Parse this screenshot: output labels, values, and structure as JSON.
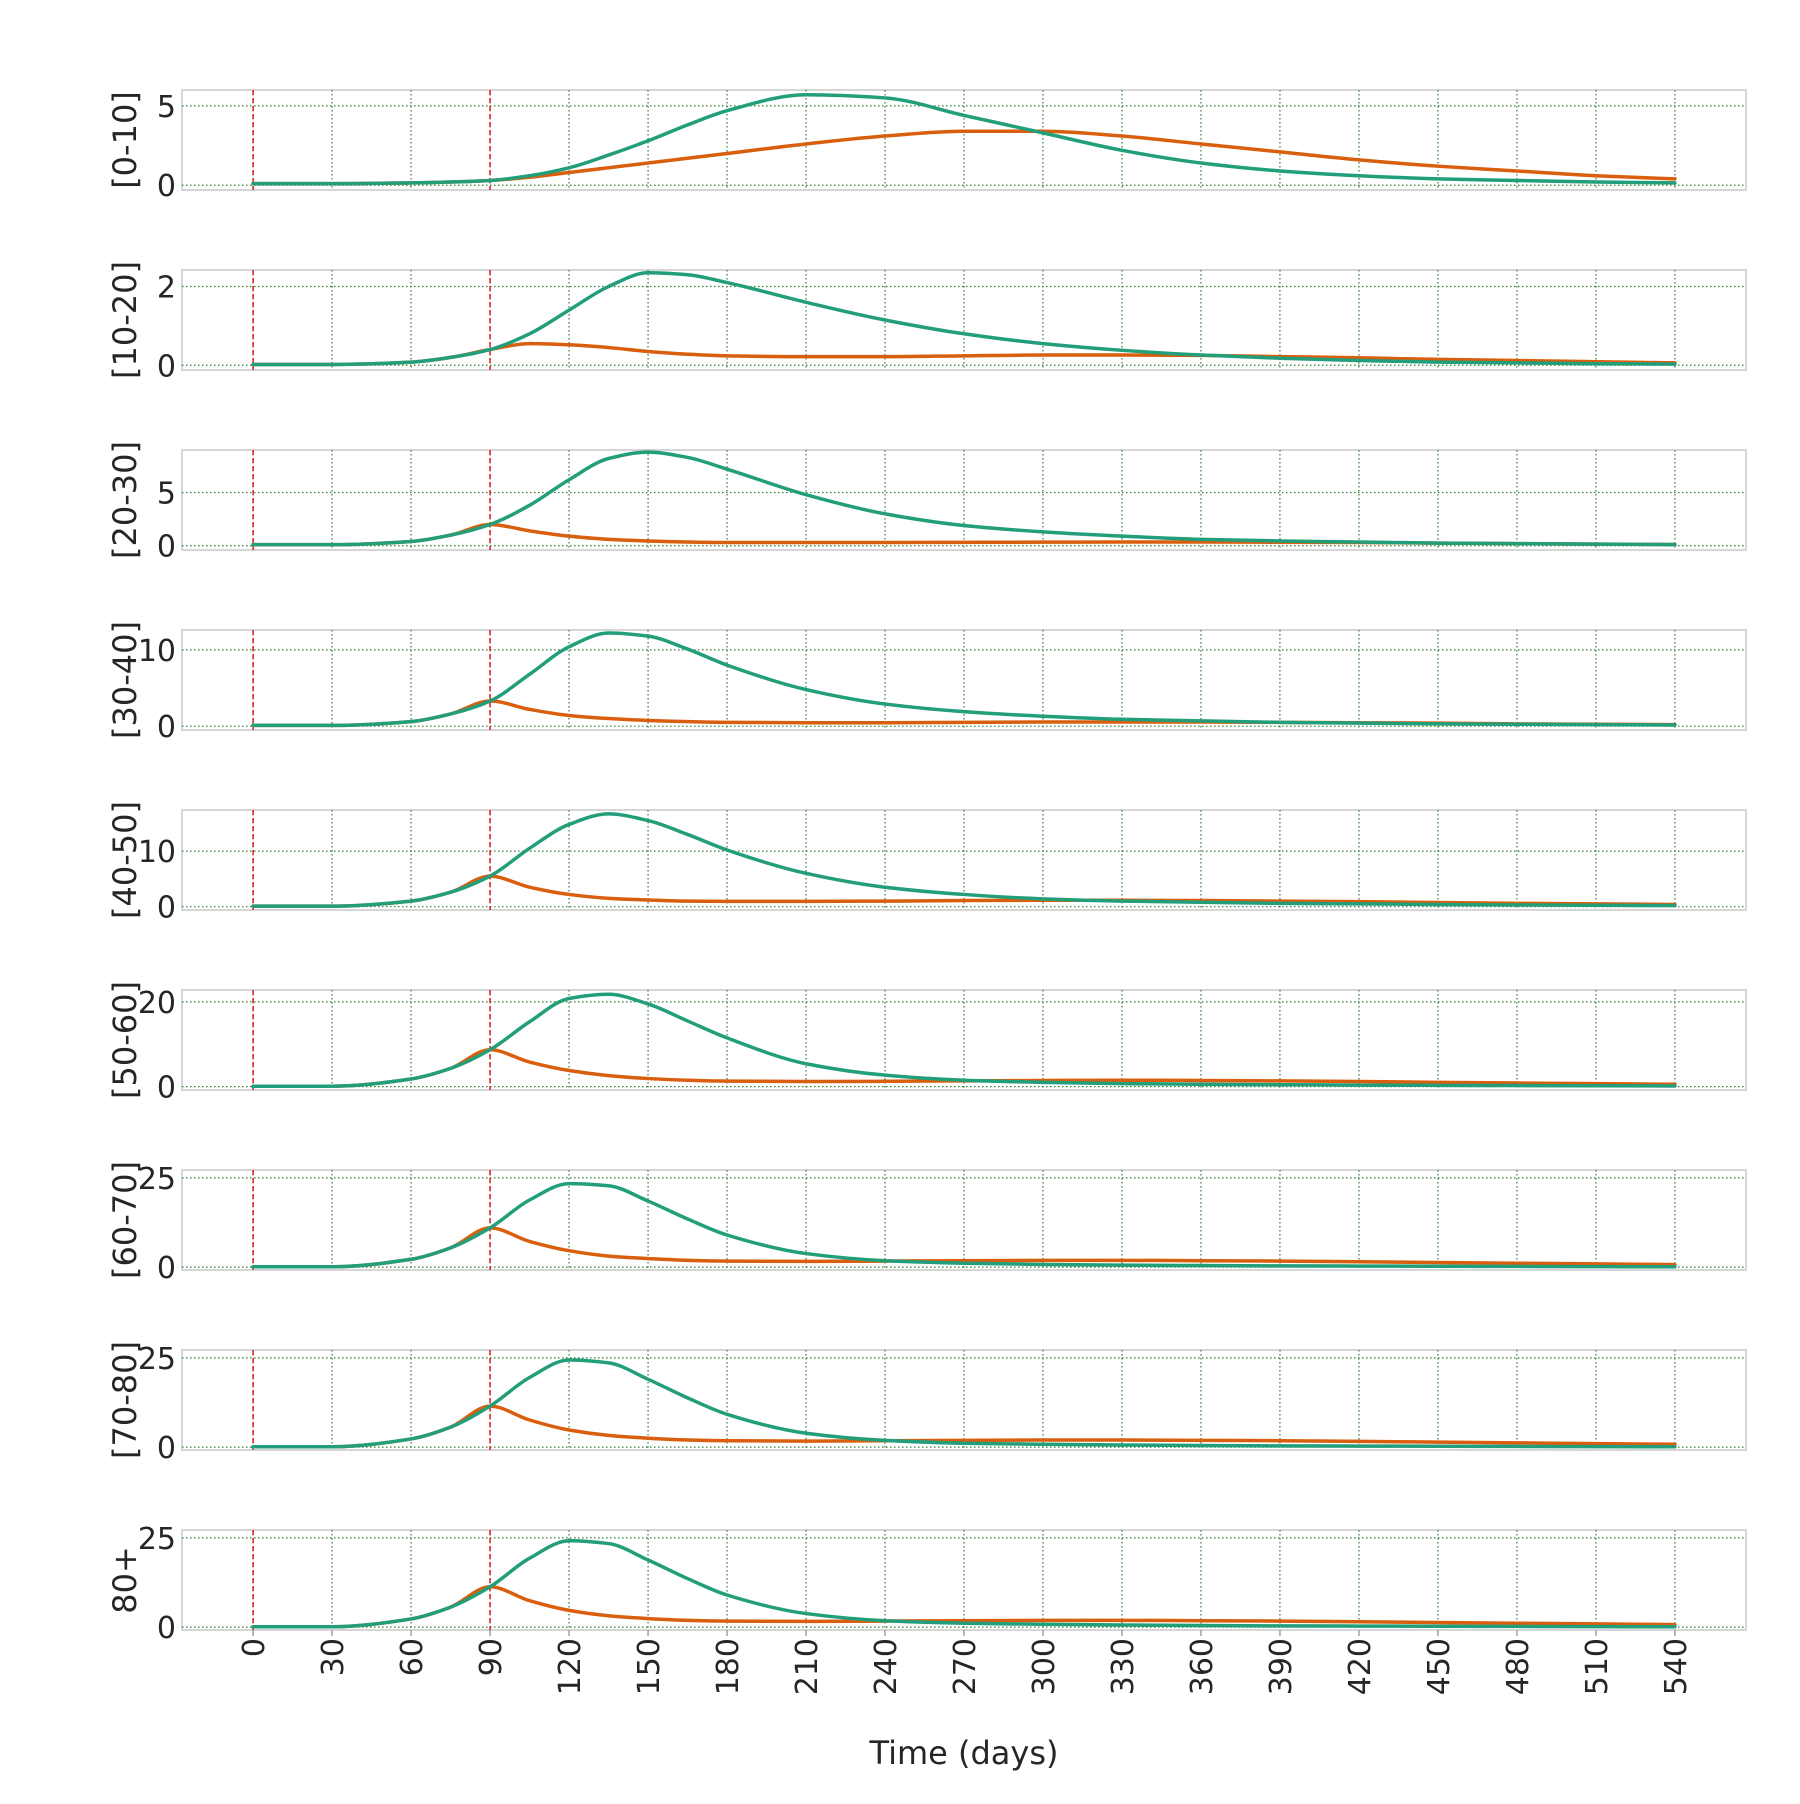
{
  "chart_data": {
    "type": "line",
    "layout": "small-multiples",
    "xlabel": "Time (days)",
    "x_ticks": [
      0,
      30,
      60,
      90,
      120,
      150,
      180,
      210,
      240,
      270,
      300,
      330,
      360,
      390,
      420,
      450,
      480,
      510,
      540
    ],
    "xlim": [
      -27,
      567
    ],
    "x_tick_label_rotation": 90,
    "vlines": [
      0,
      90
    ],
    "vline_color": "#e41a1c",
    "grid": true,
    "grid_color": "#2e7d32",
    "legend": "none",
    "series_colors": {
      "green": "#229e7a",
      "orange": "#d95f0e"
    },
    "x": [
      0,
      30,
      60,
      75,
      90,
      105,
      120,
      135,
      150,
      165,
      180,
      210,
      240,
      270,
      300,
      330,
      360,
      390,
      420,
      450,
      480,
      510,
      540
    ],
    "panels": [
      {
        "ylabel": "[0-10]",
        "ylim": [
          -0.3,
          6.0
        ],
        "yticks": [
          0,
          5
        ],
        "green": [
          0.1,
          0.1,
          0.15,
          0.2,
          0.3,
          0.6,
          1.1,
          1.9,
          2.8,
          3.8,
          4.7,
          5.7,
          5.5,
          4.4,
          3.3,
          2.2,
          1.4,
          0.9,
          0.6,
          0.4,
          0.3,
          0.2,
          0.15
        ],
        "orange": [
          0.1,
          0.1,
          0.15,
          0.2,
          0.3,
          0.5,
          0.8,
          1.1,
          1.4,
          1.7,
          2.0,
          2.6,
          3.1,
          3.4,
          3.4,
          3.1,
          2.6,
          2.1,
          1.6,
          1.2,
          0.9,
          0.6,
          0.4
        ]
      },
      {
        "ylabel": "[10-20]",
        "ylim": [
          -0.12,
          2.42
        ],
        "yticks": [
          0,
          2
        ],
        "green": [
          0.02,
          0.02,
          0.08,
          0.2,
          0.4,
          0.8,
          1.4,
          2.0,
          2.35,
          2.3,
          2.1,
          1.6,
          1.15,
          0.8,
          0.55,
          0.38,
          0.26,
          0.18,
          0.12,
          0.08,
          0.06,
          0.04,
          0.03
        ],
        "orange": [
          0.02,
          0.02,
          0.08,
          0.2,
          0.4,
          0.55,
          0.52,
          0.45,
          0.35,
          0.28,
          0.24,
          0.22,
          0.22,
          0.24,
          0.26,
          0.26,
          0.25,
          0.22,
          0.19,
          0.15,
          0.12,
          0.09,
          0.06
        ]
      },
      {
        "ylabel": "[20-30]",
        "ylim": [
          -0.4,
          9.0
        ],
        "yticks": [
          0,
          5
        ],
        "green": [
          0.1,
          0.1,
          0.4,
          1.0,
          2.0,
          3.8,
          6.2,
          8.2,
          8.8,
          8.3,
          7.2,
          4.8,
          3.0,
          1.9,
          1.3,
          0.9,
          0.6,
          0.45,
          0.35,
          0.25,
          0.2,
          0.15,
          0.1
        ],
        "orange": [
          0.1,
          0.1,
          0.4,
          1.0,
          2.0,
          1.4,
          0.9,
          0.6,
          0.45,
          0.35,
          0.3,
          0.3,
          0.3,
          0.32,
          0.34,
          0.35,
          0.35,
          0.33,
          0.3,
          0.25,
          0.2,
          0.15,
          0.12
        ]
      },
      {
        "ylabel": "[30-40]",
        "ylim": [
          -0.5,
          12.6
        ],
        "yticks": [
          0,
          10
        ],
        "green": [
          0.1,
          0.1,
          0.6,
          1.6,
          3.3,
          6.8,
          10.4,
          12.2,
          11.8,
          10.1,
          8.0,
          4.8,
          2.9,
          1.9,
          1.3,
          0.9,
          0.7,
          0.5,
          0.4,
          0.3,
          0.25,
          0.2,
          0.15
        ],
        "orange": [
          0.1,
          0.1,
          0.6,
          1.6,
          3.3,
          2.2,
          1.4,
          1.0,
          0.75,
          0.6,
          0.5,
          0.45,
          0.45,
          0.5,
          0.55,
          0.55,
          0.55,
          0.5,
          0.45,
          0.4,
          0.3,
          0.25,
          0.2
        ]
      },
      {
        "ylabel": "[40-50]",
        "ylim": [
          -0.6,
          17.4
        ],
        "yticks": [
          0,
          10
        ],
        "green": [
          0.1,
          0.1,
          1.0,
          2.6,
          5.5,
          10.5,
          14.8,
          16.7,
          15.5,
          13.0,
          10.2,
          6.0,
          3.5,
          2.2,
          1.4,
          1.0,
          0.8,
          0.6,
          0.5,
          0.4,
          0.3,
          0.25,
          0.2
        ],
        "orange": [
          0.1,
          0.1,
          1.0,
          2.6,
          5.5,
          3.5,
          2.2,
          1.5,
          1.2,
          1.0,
          0.95,
          0.95,
          1.0,
          1.1,
          1.15,
          1.15,
          1.1,
          1.0,
          0.9,
          0.75,
          0.6,
          0.5,
          0.4
        ]
      },
      {
        "ylabel": "[50-60]",
        "ylim": [
          -0.8,
          22.8
        ],
        "yticks": [
          0,
          20
        ],
        "green": [
          0.1,
          0.1,
          1.8,
          4.3,
          8.7,
          15.3,
          20.8,
          21.8,
          19.5,
          15.5,
          11.5,
          5.4,
          2.7,
          1.5,
          1.0,
          0.7,
          0.55,
          0.45,
          0.35,
          0.3,
          0.25,
          0.2,
          0.15
        ],
        "orange": [
          0.1,
          0.1,
          1.8,
          4.3,
          8.7,
          5.8,
          3.8,
          2.6,
          1.9,
          1.5,
          1.3,
          1.2,
          1.25,
          1.35,
          1.45,
          1.5,
          1.45,
          1.35,
          1.2,
          1.0,
          0.85,
          0.7,
          0.55
        ]
      },
      {
        "ylabel": "[60-70]",
        "ylim": [
          -0.8,
          27.2
        ],
        "yticks": [
          0,
          25
        ],
        "green": [
          0.1,
          0.1,
          2.2,
          5.4,
          11.0,
          18.8,
          23.4,
          22.8,
          18.5,
          13.5,
          9.0,
          3.8,
          1.8,
          1.1,
          0.75,
          0.55,
          0.45,
          0.35,
          0.3,
          0.25,
          0.2,
          0.15,
          0.1
        ],
        "orange": [
          0.1,
          0.1,
          2.2,
          5.4,
          11.0,
          7.2,
          4.6,
          3.1,
          2.4,
          1.9,
          1.7,
          1.6,
          1.7,
          1.8,
          1.9,
          1.9,
          1.8,
          1.7,
          1.5,
          1.3,
          1.1,
          0.9,
          0.7
        ]
      },
      {
        "ylabel": "[70-80]",
        "ylim": [
          -0.8,
          27.2
        ],
        "yticks": [
          0,
          25
        ],
        "green": [
          0.1,
          0.1,
          2.3,
          5.6,
          11.5,
          19.5,
          24.4,
          23.6,
          19.0,
          13.8,
          9.2,
          3.9,
          1.9,
          1.1,
          0.8,
          0.6,
          0.45,
          0.35,
          0.3,
          0.25,
          0.2,
          0.15,
          0.1
        ],
        "orange": [
          0.1,
          0.1,
          2.3,
          5.6,
          11.5,
          7.6,
          4.8,
          3.3,
          2.5,
          2.0,
          1.8,
          1.7,
          1.8,
          1.9,
          2.0,
          2.0,
          1.9,
          1.8,
          1.6,
          1.4,
          1.2,
          1.0,
          0.8
        ]
      },
      {
        "ylabel": "80+",
        "ylim": [
          -0.8,
          27.2
        ],
        "yticks": [
          0,
          25
        ],
        "green": [
          0.1,
          0.1,
          2.3,
          5.6,
          11.3,
          19.3,
          24.2,
          23.4,
          18.8,
          13.6,
          9.0,
          3.8,
          1.8,
          1.1,
          0.8,
          0.6,
          0.45,
          0.35,
          0.3,
          0.25,
          0.2,
          0.15,
          0.1
        ],
        "orange": [
          0.1,
          0.1,
          2.3,
          5.6,
          11.3,
          7.4,
          4.7,
          3.2,
          2.4,
          1.9,
          1.7,
          1.6,
          1.7,
          1.8,
          1.9,
          1.9,
          1.8,
          1.7,
          1.5,
          1.3,
          1.1,
          0.9,
          0.7
        ]
      }
    ]
  }
}
